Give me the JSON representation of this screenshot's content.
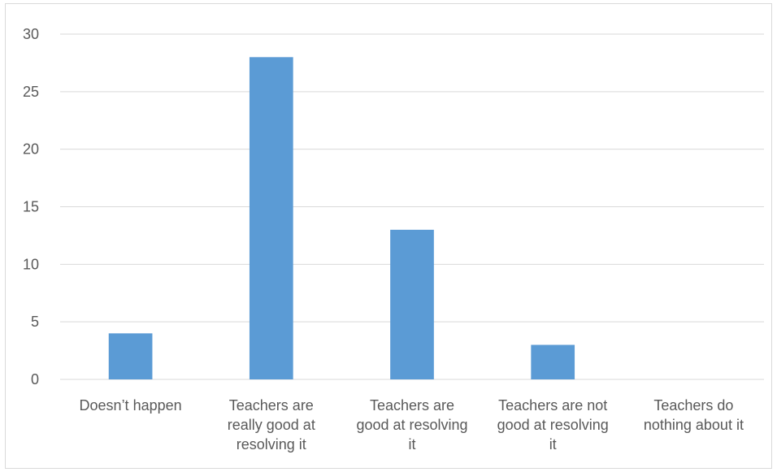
{
  "chart_data": {
    "type": "bar",
    "title": "",
    "xlabel": "",
    "ylabel": "",
    "categories": [
      [
        "Doesn’t happen"
      ],
      [
        "Teachers are",
        "really good at",
        "resolving it"
      ],
      [
        "Teachers are",
        "good at resolving",
        "it"
      ],
      [
        "Teachers are not",
        "good at resolving",
        "it"
      ],
      [
        "Teachers do",
        "nothing about it"
      ]
    ],
    "values": [
      4,
      28,
      13,
      3,
      0
    ],
    "ylim": [
      0,
      30
    ],
    "yticks": [
      0,
      5,
      10,
      15,
      20,
      25,
      30
    ],
    "grid": true,
    "legend": "none",
    "bar_color": "#5b9bd5",
    "grid_color": "#d9d9d9",
    "text_color": "#595959"
  }
}
